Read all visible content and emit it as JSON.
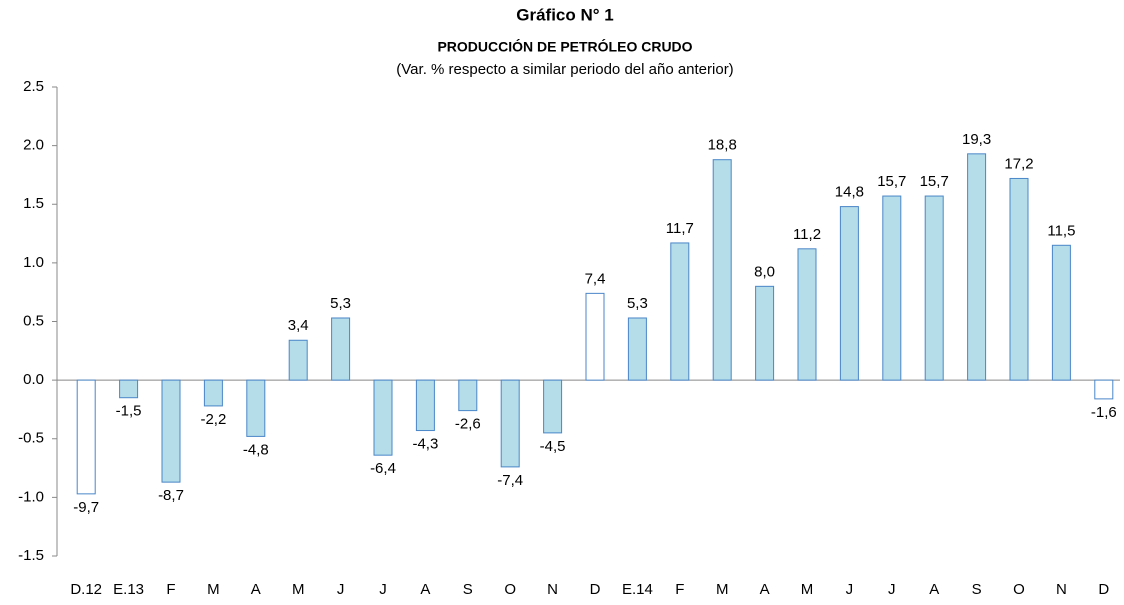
{
  "chart_data": {
    "type": "bar",
    "title": "Gráfico N° 1",
    "subtitle": "PRODUCCIÓN DE PETRÓLEO CRUDO",
    "note": "(Var. % respecto a similar periodo del año anterior)",
    "categories": [
      "D.12",
      "E.13",
      "F",
      "M",
      "A",
      "M",
      "J",
      "J",
      "A",
      "S",
      "O",
      "N",
      "D",
      "E.14",
      "F",
      "M",
      "A",
      "M",
      "J",
      "J",
      "A",
      "S",
      "O",
      "N",
      "D"
    ],
    "values": [
      -0.97,
      -0.15,
      -0.87,
      -0.22,
      -0.48,
      0.34,
      0.53,
      -0.64,
      -0.43,
      -0.26,
      -0.74,
      -0.45,
      0.74,
      0.53,
      1.17,
      1.88,
      0.8,
      1.12,
      1.48,
      1.57,
      1.57,
      1.93,
      1.72,
      1.15,
      -0.16
    ],
    "value_labels": [
      "-9,7",
      "-1,5",
      "-8,7",
      "-2,2",
      "-4,8",
      "3,4",
      "5,3",
      "-6,4",
      "-4,3",
      "-2,6",
      "-7,4",
      "-4,5",
      "7,4",
      "5,3",
      "11,7",
      "18,8",
      "8,0",
      "11,2",
      "14,8",
      "15,7",
      "15,7",
      "19,3",
      "17,2",
      "11,5",
      "-1,6"
    ],
    "colors": [
      "#ffffff",
      "#b4dde9",
      "#b4dde9",
      "#b4dde9",
      "#b4dde9",
      "#b4dde9",
      "#b4dde9",
      "#b4dde9",
      "#b4dde9",
      "#b4dde9",
      "#b4dde9",
      "#b4dde9",
      "#ffffff",
      "#b4dde9",
      "#b4dde9",
      "#b4dde9",
      "#b4dde9",
      "#b4dde9",
      "#b4dde9",
      "#b4dde9",
      "#b4dde9",
      "#b4dde9",
      "#b4dde9",
      "#b4dde9",
      "#ffffff"
    ],
    "edge_color": "#4a86c8",
    "ylim": [
      -1.5,
      2.5
    ],
    "yticks": [
      -1.5,
      {
        "value": -1,
        "label": "-1.0"
      },
      -0.5,
      {
        "value": 0,
        "label": "0.0"
      },
      0.5,
      {
        "value": 1,
        "label": "1.0"
      },
      1.5,
      {
        "value": 2,
        "label": "2.0"
      },
      2.5
    ],
    "grid": false
  }
}
